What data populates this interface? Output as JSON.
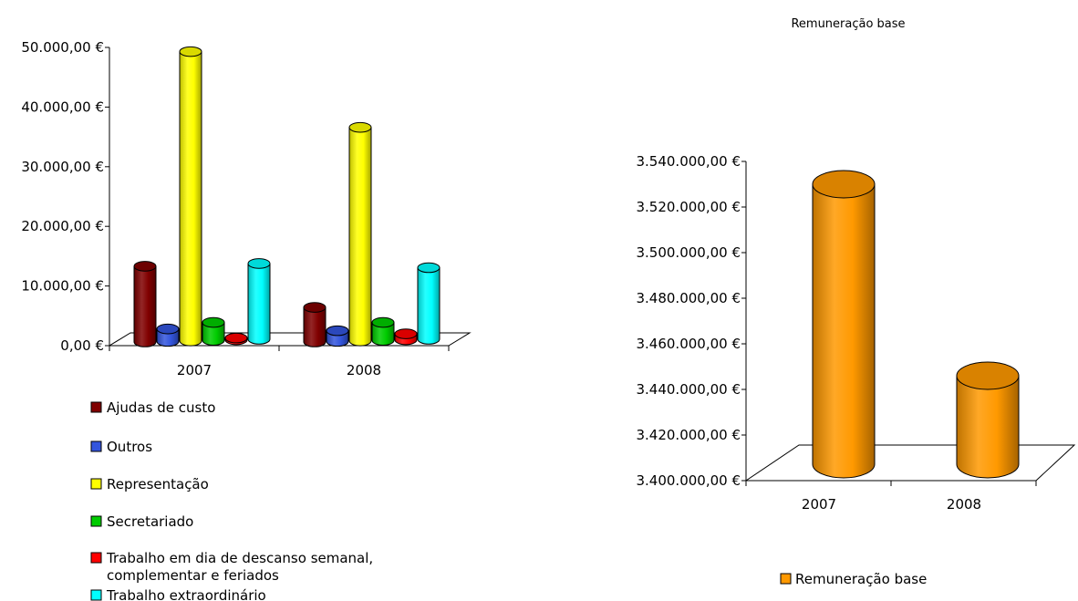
{
  "chart_data": [
    {
      "type": "bar",
      "title": "",
      "categories": [
        "2007",
        "2008"
      ],
      "ylim": [
        0,
        50000
      ],
      "yticks": [
        "0,00 €",
        "10.000,00 €",
        "20.000,00 €",
        "30.000,00 €",
        "40.000,00 €",
        "50.000,00 €"
      ],
      "series": [
        {
          "name": "Ajudas de custo",
          "color": "#800000",
          "values": [
            12700,
            5800
          ]
        },
        {
          "name": "Outros",
          "color": "#3355dd",
          "values": [
            2100,
            1800
          ]
        },
        {
          "name": "Representação",
          "color": "#ffff00",
          "values": [
            48500,
            35800
          ]
        },
        {
          "name": "Secretariado",
          "color": "#00cc00",
          "values": [
            3000,
            3000
          ]
        },
        {
          "name": "Trabalho em dia de descanso semanal, complementar e feriados",
          "color": "#ff0000",
          "values": [
            300,
            1000
          ]
        },
        {
          "name": "Trabalho extraordinário",
          "color": "#00ffff",
          "values": [
            12700,
            12000
          ]
        }
      ],
      "legend_placement": "bottom"
    },
    {
      "type": "bar",
      "title": "Remuneração base",
      "categories": [
        "2007",
        "2008"
      ],
      "ylim": [
        3400000,
        3540000
      ],
      "yticks": [
        "3.400.000,00 €",
        "3.420.000,00 €",
        "3.440.000,00 €",
        "3.460.000,00 €",
        "3.480.000,00 €",
        "3.500.000,00 €",
        "3.520.000,00 €",
        "3.540.000,00 €"
      ],
      "series": [
        {
          "name": "Remuneração base",
          "color": "#ff9900",
          "values": [
            3530000,
            3446000
          ]
        }
      ],
      "legend_placement": "bottom"
    }
  ],
  "legend_left": {
    "items": [
      {
        "label": "Ajudas de custo",
        "color": "#800000"
      },
      {
        "label": "Outros",
        "color": "#3355dd"
      },
      {
        "label": "Representação",
        "color": "#ffff00"
      },
      {
        "label": "Secretariado",
        "color": "#00cc00"
      },
      {
        "label": "Trabalho em dia de descanso semanal,",
        "label2": "complementar e feriados",
        "color": "#ff0000"
      },
      {
        "label": "Trabalho extraordinário",
        "color": "#00ffff"
      }
    ]
  },
  "legend_right": {
    "items": [
      {
        "label": "Remuneração base",
        "color": "#ff9900"
      }
    ]
  }
}
